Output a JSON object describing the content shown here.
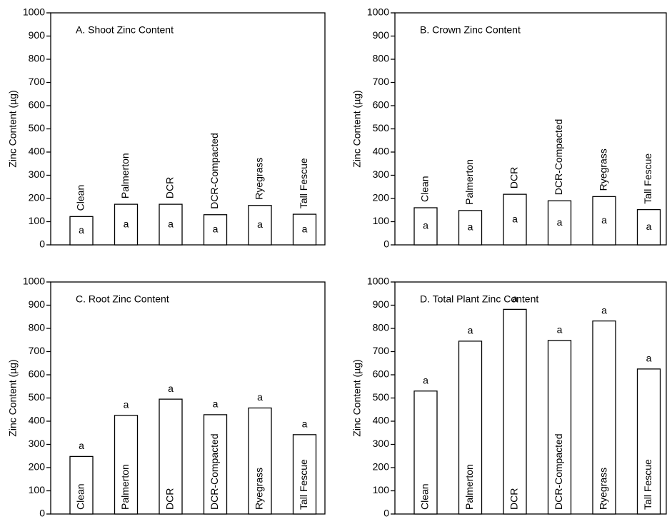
{
  "chart_data": [
    {
      "type": "bar",
      "title": "A.  Shoot Zinc Content",
      "ylabel": "Zinc Content (µg)",
      "categories": [
        "Clean",
        "Palmerton",
        "DCR",
        "DCR-Compacted",
        "Ryegrass",
        "Tall Fescue"
      ],
      "values": [
        122,
        175,
        175,
        130,
        170,
        132
      ],
      "significance_letters": [
        "a",
        "a",
        "a",
        "a",
        "a",
        "a"
      ],
      "ylim": [
        0,
        1000
      ],
      "yticks": [
        0,
        100,
        200,
        300,
        400,
        500,
        600,
        700,
        800,
        900,
        1000
      ],
      "color": "#ffffff"
    },
    {
      "type": "bar",
      "title": "B.  Crown Zinc Content",
      "ylabel": "Zinc Content (µg)",
      "categories": [
        "Clean",
        "Palmerton",
        "DCR",
        "DCR-Compacted",
        "Ryegrass",
        "Tall Fescue"
      ],
      "values": [
        160,
        148,
        218,
        190,
        208,
        152
      ],
      "significance_letters": [
        "a",
        "a",
        "a",
        "a",
        "a",
        "a"
      ],
      "ylim": [
        0,
        1000
      ],
      "yticks": [
        0,
        100,
        200,
        300,
        400,
        500,
        600,
        700,
        800,
        900,
        1000
      ],
      "color": "#ffffff"
    },
    {
      "type": "bar",
      "title": "C.  Root Zinc Content",
      "ylabel": "Zinc Content (µg)",
      "categories": [
        "Clean",
        "Palmerton",
        "DCR",
        "DCR-Compacted",
        "Ryegrass",
        "Tall Fescue"
      ],
      "values": [
        248,
        425,
        495,
        428,
        457,
        342
      ],
      "significance_letters": [
        "a",
        "a",
        "a",
        "a",
        "a",
        "a"
      ],
      "ylim": [
        0,
        1000
      ],
      "yticks": [
        0,
        100,
        200,
        300,
        400,
        500,
        600,
        700,
        800,
        900,
        1000
      ],
      "color": "#ffffff"
    },
    {
      "type": "bar",
      "title": "D.  Total Plant Zinc Content",
      "ylabel": "Zinc Content (µg)",
      "categories": [
        "Clean",
        "Palmerton",
        "DCR",
        "DCR-Compacted",
        "Ryegrass",
        "Tall Fescue"
      ],
      "values": [
        530,
        745,
        882,
        748,
        832,
        625
      ],
      "significance_letters": [
        "a",
        "a",
        "a",
        "a",
        "a",
        "a"
      ],
      "ylim": [
        0,
        1000
      ],
      "yticks": [
        0,
        100,
        200,
        300,
        400,
        500,
        600,
        700,
        800,
        900,
        1000
      ],
      "color": "#ffffff"
    }
  ]
}
